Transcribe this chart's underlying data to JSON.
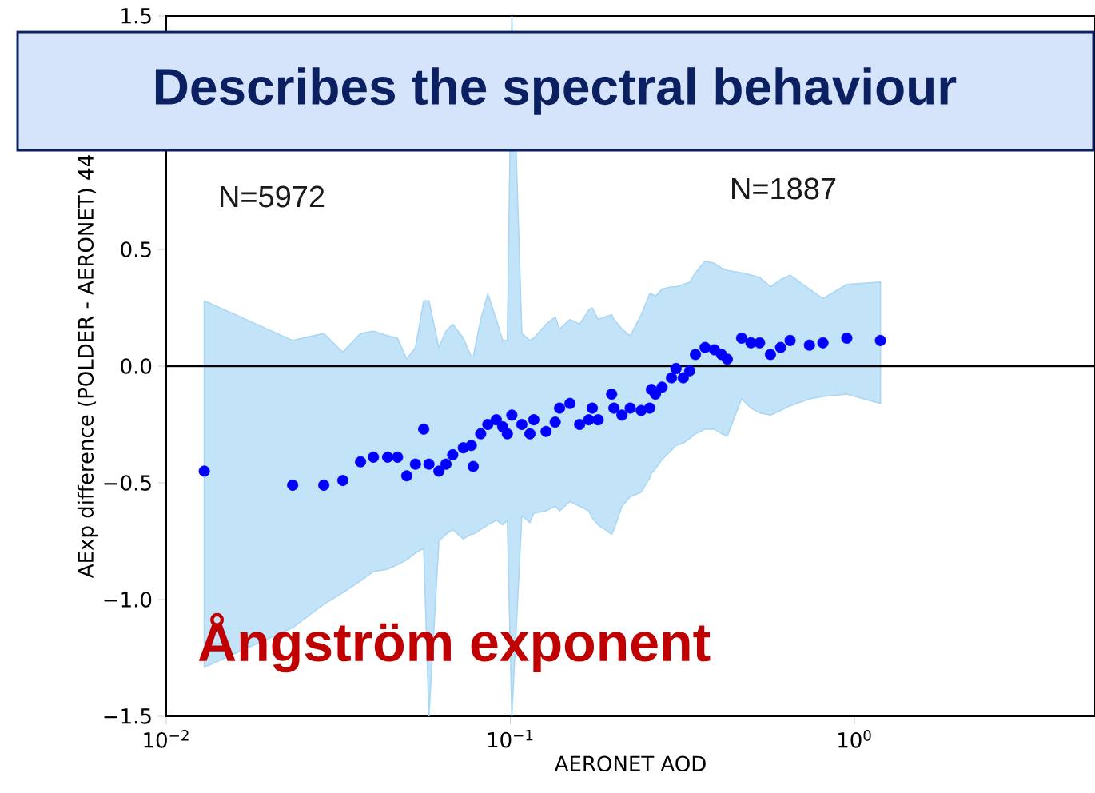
{
  "chart_data": {
    "type": "scatter",
    "xlabel": "AERONET AOD",
    "ylabel": "AExp difference (POLDER - AERONET) 44",
    "log": "x",
    "xlim": [
      0.01,
      5
    ],
    "ylim": [
      -1.5,
      1.5
    ],
    "xticks": [
      {
        "value": 0.01,
        "label": "10$^{−2}$"
      },
      {
        "value": 0.1,
        "label": "10$^{−1}$"
      },
      {
        "value": 1,
        "label": "10$^{0}$"
      }
    ],
    "yticks": [
      {
        "value": -1.5,
        "label": "−1.5"
      },
      {
        "value": -1,
        "label": "−1.0"
      },
      {
        "value": -0.5,
        "label": "−0.5"
      },
      {
        "value": 0,
        "label": "0.0"
      },
      {
        "value": 0.5,
        "label": "0.5"
      },
      {
        "value": 1.5,
        "label": "1.5"
      }
    ],
    "ref_lines": [
      {
        "axis": "y",
        "value": 0,
        "color": "#000000"
      }
    ],
    "annotations": [
      "Describes the spectral  behaviour",
      "N=5972",
      "N=1887",
      "Ångström exponent"
    ],
    "series": [
      {
        "color": "#0000ff",
        "x": [
          0.0129,
          0.0233,
          0.0287,
          0.0326,
          0.0367,
          0.04,
          0.044,
          0.047,
          0.05,
          0.053,
          0.056,
          0.058,
          0.062,
          0.065,
          0.068,
          0.073,
          0.077,
          0.078,
          0.082,
          0.086,
          0.091,
          0.095,
          0.098,
          0.101,
          0.108,
          0.114,
          0.117,
          0.127,
          0.135,
          0.139,
          0.149,
          0.159,
          0.169,
          0.173,
          0.18,
          0.197,
          0.2,
          0.211,
          0.223,
          0.24,
          0.254,
          0.257,
          0.264,
          0.276,
          0.294,
          0.303,
          0.318,
          0.332,
          0.345,
          0.368,
          0.392,
          0.411,
          0.427,
          0.47,
          0.5,
          0.53,
          0.57,
          0.61,
          0.65,
          0.74,
          0.81,
          0.95,
          1.19
        ],
        "values": [
          -0.45,
          -0.51,
          -0.51,
          -0.49,
          -0.41,
          -0.39,
          -0.39,
          -0.39,
          -0.47,
          -0.42,
          -0.27,
          -0.42,
          -0.45,
          -0.42,
          -0.38,
          -0.35,
          -0.34,
          -0.43,
          -0.29,
          -0.25,
          -0.23,
          -0.26,
          -0.29,
          -0.21,
          -0.25,
          -0.29,
          -0.23,
          -0.28,
          -0.24,
          -0.18,
          -0.16,
          -0.25,
          -0.23,
          -0.18,
          -0.23,
          -0.12,
          -0.18,
          -0.21,
          -0.18,
          -0.19,
          -0.18,
          -0.1,
          -0.12,
          -0.09,
          -0.05,
          -0.01,
          -0.05,
          -0.02,
          0.05,
          0.08,
          0.07,
          0.05,
          0.03,
          0.12,
          0.1,
          0.1,
          0.05,
          0.08,
          0.11,
          0.09,
          0.1,
          0.12,
          0.11
        ],
        "upper": [
          0.28,
          0.11,
          0.14,
          0.06,
          0.14,
          0.15,
          0.13,
          0.12,
          0.03,
          0.08,
          0.28,
          0.28,
          0.08,
          0.15,
          0.18,
          0.12,
          0.04,
          0.04,
          0.2,
          0.31,
          0.2,
          0.11,
          0.11,
          1.5,
          0.14,
          0.11,
          0.12,
          0.18,
          0.21,
          0.16,
          0.2,
          0.18,
          0.24,
          0.25,
          0.2,
          0.22,
          0.2,
          0.16,
          0.13,
          0.22,
          0.31,
          0.31,
          0.3,
          0.33,
          0.34,
          0.34,
          0.35,
          0.36,
          0.4,
          0.45,
          0.44,
          0.42,
          0.41,
          0.4,
          0.39,
          0.38,
          0.34,
          0.37,
          0.39,
          0.33,
          0.29,
          0.35,
          0.36
        ],
        "lower": [
          -1.29,
          -1.12,
          -1.02,
          -0.97,
          -0.92,
          -0.88,
          -0.87,
          -0.85,
          -0.83,
          -0.8,
          -0.78,
          -1.5,
          -0.75,
          -0.72,
          -0.7,
          -0.74,
          -0.72,
          -0.72,
          -0.7,
          -0.68,
          -0.66,
          -0.68,
          -0.66,
          -1.5,
          -0.64,
          -0.67,
          -0.63,
          -0.62,
          -0.6,
          -0.62,
          -0.58,
          -0.6,
          -0.62,
          -0.65,
          -0.68,
          -0.72,
          -0.7,
          -0.6,
          -0.56,
          -0.54,
          -0.48,
          -0.46,
          -0.44,
          -0.4,
          -0.36,
          -0.34,
          -0.33,
          -0.31,
          -0.29,
          -0.27,
          -0.27,
          -0.29,
          -0.3,
          -0.14,
          -0.18,
          -0.2,
          -0.21,
          -0.19,
          -0.17,
          -0.14,
          -0.13,
          -0.12,
          -0.16
        ]
      }
    ]
  }
}
